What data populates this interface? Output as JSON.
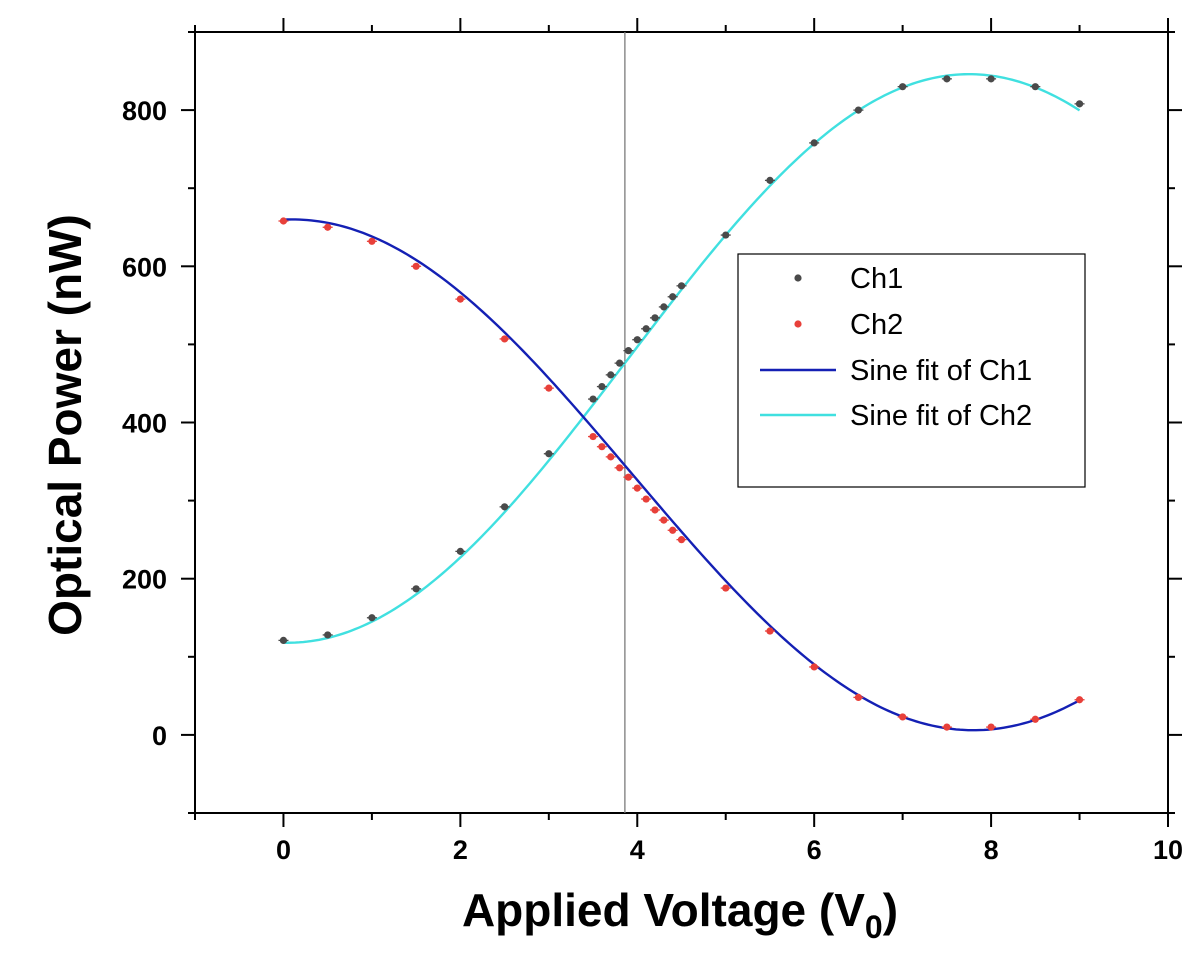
{
  "chart_data": {
    "type": "scatter",
    "xlabel": "Applied Voltage (V",
    "xlabel_subscript": "0",
    "xlabel_suffix": ")",
    "ylabel": "Optical Power (nW)",
    "xlim": [
      -1,
      10
    ],
    "ylim": [
      -100,
      900
    ],
    "x_ticks": [
      0,
      2,
      4,
      6,
      8,
      10
    ],
    "x_tick_labels": [
      "0",
      "2",
      "4",
      "6",
      "8",
      "10"
    ],
    "y_ticks": [
      0,
      200,
      400,
      600,
      800
    ],
    "y_tick_labels": [
      "0",
      "200",
      "400",
      "600",
      "800"
    ],
    "x_minor_ticks": [
      -1,
      1,
      3,
      5,
      7,
      9
    ],
    "y_minor_ticks": [
      -100,
      100,
      300,
      500,
      700,
      900
    ],
    "vertical_line_x": 3.86,
    "legend_position": "right-center",
    "series": [
      {
        "name": "Ch1",
        "kind": "points",
        "color": "#4a4a4a",
        "x": [
          0,
          0.5,
          1,
          1.5,
          2,
          2.5,
          3,
          3.5,
          3.6,
          3.7,
          3.8,
          3.9,
          4.0,
          4.1,
          4.2,
          4.3,
          4.4,
          4.5,
          5,
          5.5,
          6,
          6.5,
          7,
          7.5,
          8,
          8.5,
          9
        ],
        "y": [
          121,
          128,
          150,
          187,
          235,
          292,
          360,
          430,
          446,
          461,
          476,
          492,
          506,
          520,
          534,
          548,
          561,
          575,
          640,
          710,
          758,
          800,
          830,
          840,
          840,
          830,
          808
        ]
      },
      {
        "name": "Ch2",
        "kind": "points",
        "color": "#e8403a",
        "x": [
          0,
          0.5,
          1,
          1.5,
          2,
          2.5,
          3,
          3.5,
          3.6,
          3.7,
          3.8,
          3.9,
          4.0,
          4.1,
          4.2,
          4.3,
          4.4,
          4.5,
          5,
          5.5,
          6,
          6.5,
          7,
          7.5,
          8,
          8.5,
          9
        ],
        "y": [
          658,
          650,
          632,
          600,
          558,
          507,
          444,
          382,
          369,
          356,
          342,
          330,
          316,
          302,
          288,
          275,
          262,
          250,
          188,
          133,
          87,
          48,
          23,
          10,
          10,
          20,
          45
        ]
      },
      {
        "name": "Sine fit of Ch1",
        "kind": "line",
        "color": "#1420b4",
        "fit": {
          "y0": 333,
          "A": 327,
          "x_peak": 0.1,
          "period": 15.4
        },
        "x_range": [
          0,
          9
        ]
      },
      {
        "name": "Sine fit of Ch2",
        "kind": "line",
        "color": "#40e0e0",
        "fit": {
          "y0": 482,
          "A": 364,
          "x_peak": 7.75,
          "period": 15.4
        },
        "x_range": [
          0,
          9
        ]
      }
    ]
  }
}
